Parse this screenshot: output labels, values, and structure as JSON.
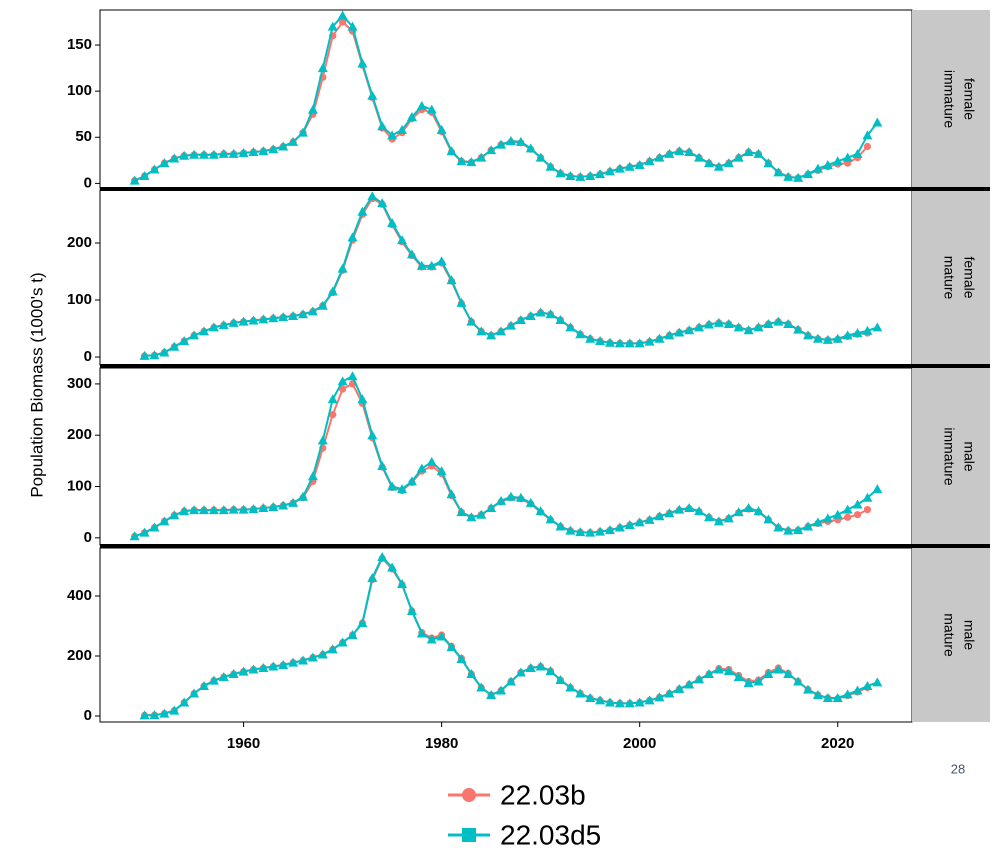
{
  "y_label": "Population Biomass (1000's t)",
  "page_number": "28",
  "legend": [
    {
      "name": "22.03b",
      "color": "#f8766d",
      "marker": "circle"
    },
    {
      "name": "22.03d5",
      "color": "#00bfc4",
      "marker": "triangle"
    }
  ],
  "chart_data": [
    {
      "type": "line",
      "strip": [
        "female",
        "immature"
      ],
      "xlim": [
        1945.5,
        2027.5
      ],
      "ylim": [
        -5,
        188
      ],
      "yticks": [
        0,
        50,
        100,
        150
      ],
      "x": [
        1949,
        1950,
        1951,
        1952,
        1953,
        1954,
        1955,
        1956,
        1957,
        1958,
        1959,
        1960,
        1961,
        1962,
        1963,
        1964,
        1965,
        1966,
        1967,
        1968,
        1969,
        1970,
        1971,
        1972,
        1973,
        1974,
        1975,
        1976,
        1977,
        1978,
        1979,
        1980,
        1981,
        1982,
        1983,
        1984,
        1985,
        1986,
        1987,
        1988,
        1989,
        1990,
        1991,
        1992,
        1993,
        1994,
        1995,
        1996,
        1997,
        1998,
        1999,
        2000,
        2001,
        2002,
        2003,
        2004,
        2005,
        2006,
        2007,
        2008,
        2009,
        2010,
        2011,
        2012,
        2013,
        2014,
        2015,
        2016,
        2017,
        2018,
        2019,
        2020,
        2021,
        2022,
        2023,
        2024
      ],
      "series": [
        {
          "values": [
            3,
            8,
            15,
            22,
            27,
            30,
            31,
            31,
            31,
            32,
            32,
            33,
            34,
            35,
            37,
            40,
            45,
            55,
            75,
            115,
            160,
            175,
            165,
            128,
            93,
            60,
            48,
            55,
            70,
            80,
            77,
            56,
            34,
            24,
            23,
            28,
            36,
            42,
            45,
            44,
            37,
            28,
            18,
            11,
            8,
            7,
            8,
            10,
            13,
            16,
            18,
            20,
            24,
            28,
            32,
            35,
            34,
            28,
            22,
            18,
            22,
            28,
            34,
            32,
            22,
            12,
            7,
            6,
            10,
            14,
            18,
            21,
            22,
            28,
            40,
            null
          ]
        },
        {
          "values": [
            3,
            8,
            15,
            22,
            27,
            30,
            31,
            31,
            31,
            32,
            32,
            33,
            34,
            35,
            37,
            40,
            45,
            55,
            80,
            125,
            170,
            182,
            170,
            130,
            95,
            62,
            52,
            58,
            72,
            84,
            80,
            58,
            35,
            24,
            23,
            28,
            36,
            42,
            46,
            45,
            38,
            28,
            18,
            11,
            8,
            7,
            8,
            10,
            13,
            16,
            18,
            20,
            24,
            28,
            32,
            35,
            34,
            28,
            22,
            18,
            22,
            28,
            34,
            32,
            22,
            12,
            7,
            6,
            10,
            16,
            20,
            24,
            28,
            32,
            52,
            66
          ]
        }
      ]
    },
    {
      "type": "line",
      "strip": [
        "female",
        "mature"
      ],
      "xlim": [
        1945.5,
        2027.5
      ],
      "ylim": [
        -14,
        293
      ],
      "yticks": [
        0,
        100,
        200
      ],
      "x": [
        1950,
        1951,
        1952,
        1953,
        1954,
        1955,
        1956,
        1957,
        1958,
        1959,
        1960,
        1961,
        1962,
        1963,
        1964,
        1965,
        1966,
        1967,
        1968,
        1969,
        1970,
        1971,
        1972,
        1973,
        1974,
        1975,
        1976,
        1977,
        1978,
        1979,
        1980,
        1981,
        1982,
        1983,
        1984,
        1985,
        1986,
        1987,
        1988,
        1989,
        1990,
        1991,
        1992,
        1993,
        1994,
        1995,
        1996,
        1997,
        1998,
        1999,
        2000,
        2001,
        2002,
        2003,
        2004,
        2005,
        2006,
        2007,
        2008,
        2009,
        2010,
        2011,
        2012,
        2013,
        2014,
        2015,
        2016,
        2017,
        2018,
        2019,
        2020,
        2021,
        2022,
        2023,
        2024
      ],
      "series": [
        {
          "values": [
            2,
            3,
            8,
            18,
            28,
            38,
            45,
            52,
            56,
            60,
            62,
            64,
            66,
            68,
            70,
            72,
            75,
            80,
            90,
            113,
            152,
            205,
            250,
            278,
            268,
            232,
            202,
            178,
            158,
            158,
            165,
            133,
            94,
            62,
            45,
            38,
            45,
            55,
            65,
            72,
            78,
            75,
            65,
            52,
            40,
            32,
            28,
            25,
            24,
            24,
            24,
            27,
            32,
            38,
            43,
            47,
            52,
            57,
            60,
            58,
            52,
            47,
            52,
            58,
            62,
            58,
            48,
            38,
            32,
            30,
            31,
            36,
            40,
            42,
            null
          ]
        },
        {
          "values": [
            2,
            3,
            8,
            18,
            28,
            38,
            45,
            52,
            56,
            60,
            62,
            64,
            66,
            68,
            70,
            72,
            75,
            80,
            90,
            115,
            155,
            210,
            255,
            282,
            270,
            235,
            205,
            180,
            160,
            160,
            168,
            135,
            95,
            62,
            45,
            38,
            45,
            55,
            65,
            72,
            78,
            75,
            65,
            52,
            40,
            32,
            28,
            25,
            24,
            24,
            24,
            27,
            32,
            38,
            43,
            47,
            52,
            57,
            60,
            58,
            52,
            47,
            52,
            58,
            62,
            58,
            48,
            38,
            32,
            30,
            32,
            38,
            42,
            46,
            52
          ]
        }
      ]
    },
    {
      "type": "line",
      "strip": [
        "male",
        "immature"
      ],
      "xlim": [
        1945.5,
        2027.5
      ],
      "ylim": [
        -14,
        331
      ],
      "yticks": [
        0,
        100,
        200,
        300
      ],
      "x": [
        1949,
        1950,
        1951,
        1952,
        1953,
        1954,
        1955,
        1956,
        1957,
        1958,
        1959,
        1960,
        1961,
        1962,
        1963,
        1964,
        1965,
        1966,
        1967,
        1968,
        1969,
        1970,
        1971,
        1972,
        1973,
        1974,
        1975,
        1976,
        1977,
        1978,
        1979,
        1980,
        1981,
        1982,
        1983,
        1984,
        1985,
        1986,
        1987,
        1988,
        1989,
        1990,
        1991,
        1992,
        1993,
        1994,
        1995,
        1996,
        1997,
        1998,
        1999,
        2000,
        2001,
        2002,
        2003,
        2004,
        2005,
        2006,
        2007,
        2008,
        2009,
        2010,
        2011,
        2012,
        2013,
        2014,
        2015,
        2016,
        2017,
        2018,
        2019,
        2020,
        2021,
        2022,
        2023,
        2024
      ],
      "series": [
        {
          "values": [
            3,
            10,
            20,
            32,
            44,
            52,
            54,
            54,
            54,
            54,
            55,
            55,
            56,
            58,
            60,
            63,
            68,
            78,
            110,
            175,
            240,
            290,
            300,
            262,
            195,
            138,
            98,
            92,
            108,
            130,
            140,
            125,
            82,
            50,
            40,
            45,
            58,
            70,
            78,
            76,
            66,
            50,
            35,
            22,
            14,
            11,
            10,
            12,
            15,
            20,
            25,
            30,
            35,
            42,
            48,
            54,
            57,
            51,
            40,
            32,
            38,
            49,
            56,
            50,
            35,
            20,
            14,
            15,
            22,
            28,
            32,
            35,
            40,
            45,
            55,
            null
          ]
        },
        {
          "values": [
            3,
            10,
            20,
            32,
            44,
            52,
            54,
            54,
            54,
            54,
            55,
            55,
            56,
            58,
            60,
            63,
            68,
            80,
            120,
            190,
            270,
            305,
            315,
            270,
            200,
            140,
            100,
            95,
            110,
            135,
            148,
            130,
            85,
            50,
            40,
            45,
            58,
            72,
            80,
            78,
            68,
            52,
            36,
            22,
            14,
            11,
            10,
            12,
            15,
            20,
            25,
            30,
            35,
            42,
            48,
            55,
            58,
            52,
            40,
            32,
            38,
            50,
            58,
            52,
            36,
            20,
            14,
            15,
            22,
            30,
            38,
            45,
            55,
            65,
            78,
            95
          ]
        }
      ]
    },
    {
      "type": "line",
      "strip": [
        "male",
        "mature"
      ],
      "xlim": [
        1945.5,
        2027.5
      ],
      "ylim": [
        -20,
        560
      ],
      "yticks": [
        0,
        200,
        400
      ],
      "xticks": [
        1960,
        1980,
        2000,
        2020
      ],
      "x": [
        1950,
        1951,
        1952,
        1953,
        1954,
        1955,
        1956,
        1957,
        1958,
        1959,
        1960,
        1961,
        1962,
        1963,
        1964,
        1965,
        1966,
        1967,
        1968,
        1969,
        1970,
        1971,
        1972,
        1973,
        1974,
        1975,
        1976,
        1977,
        1978,
        1979,
        1980,
        1981,
        1982,
        1983,
        1984,
        1985,
        1986,
        1987,
        1988,
        1989,
        1990,
        1991,
        1992,
        1993,
        1994,
        1995,
        1996,
        1997,
        1998,
        1999,
        2000,
        2001,
        2002,
        2003,
        2004,
        2005,
        2006,
        2007,
        2008,
        2009,
        2010,
        2011,
        2012,
        2013,
        2014,
        2015,
        2016,
        2017,
        2018,
        2019,
        2020,
        2021,
        2022,
        2023,
        2024
      ],
      "series": [
        {
          "values": [
            2,
            3,
            8,
            18,
            45,
            75,
            100,
            118,
            130,
            140,
            148,
            155,
            160,
            165,
            170,
            178,
            185,
            195,
            205,
            222,
            245,
            270,
            310,
            455,
            525,
            490,
            438,
            350,
            278,
            260,
            270,
            232,
            192,
            140,
            95,
            70,
            85,
            115,
            145,
            160,
            165,
            150,
            120,
            95,
            75,
            60,
            52,
            45,
            42,
            42,
            45,
            52,
            62,
            75,
            90,
            105,
            122,
            140,
            158,
            155,
            135,
            115,
            120,
            145,
            160,
            142,
            115,
            88,
            70,
            60,
            58,
            68,
            80,
            95,
            null
          ]
        },
        {
          "values": [
            2,
            3,
            8,
            18,
            45,
            75,
            100,
            118,
            130,
            140,
            148,
            155,
            160,
            165,
            170,
            178,
            185,
            195,
            205,
            222,
            245,
            270,
            310,
            460,
            530,
            495,
            440,
            350,
            275,
            255,
            265,
            230,
            190,
            140,
            95,
            70,
            85,
            115,
            145,
            160,
            165,
            150,
            120,
            95,
            75,
            60,
            52,
            45,
            42,
            42,
            45,
            52,
            62,
            75,
            90,
            105,
            122,
            140,
            155,
            150,
            130,
            110,
            115,
            140,
            155,
            140,
            115,
            88,
            70,
            60,
            60,
            72,
            85,
            100,
            112
          ]
        }
      ]
    }
  ]
}
